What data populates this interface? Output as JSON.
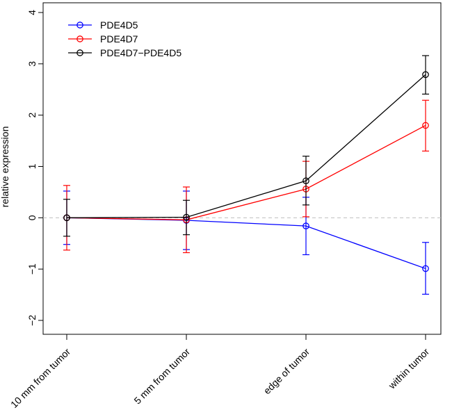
{
  "chart_data": {
    "type": "line",
    "title": "",
    "xlabel": "",
    "ylabel": "relative expression",
    "ylim": [
      -2,
      4
    ],
    "yticks": [
      -2,
      -1,
      0,
      1,
      2,
      3,
      4
    ],
    "ytick_labels": [
      "−2",
      "−1",
      "0",
      "1",
      "2",
      "3",
      "4"
    ],
    "categories": [
      "10 mm from tumor",
      "5 mm from tumor",
      "edge of tumor",
      "within tumor"
    ],
    "reference_line": {
      "y": 0,
      "style": "dashed",
      "color": "#bebebe"
    },
    "grid": false,
    "legend_position": "top-left",
    "series": [
      {
        "name": "PDE4D5",
        "color": "#0000ff",
        "values": [
          0,
          -0.05,
          -0.16,
          -0.99
        ],
        "err_low": [
          -0.52,
          -0.62,
          -0.72,
          -1.49
        ],
        "err_high": [
          0.52,
          0.52,
          0.4,
          -0.48
        ]
      },
      {
        "name": "PDE4D7",
        "color": "#ff0000",
        "values": [
          0,
          -0.04,
          0.56,
          1.8
        ],
        "err_low": [
          -0.63,
          -0.68,
          0.02,
          1.3
        ],
        "err_high": [
          0.63,
          0.6,
          1.1,
          2.29
        ]
      },
      {
        "name": "PDE4D7−PDE4D5",
        "color": "#000000",
        "values": [
          0,
          0.01,
          0.72,
          2.79
        ],
        "err_low": [
          -0.36,
          -0.33,
          0.25,
          2.41
        ],
        "err_high": [
          0.36,
          0.34,
          1.2,
          3.16
        ]
      }
    ]
  }
}
